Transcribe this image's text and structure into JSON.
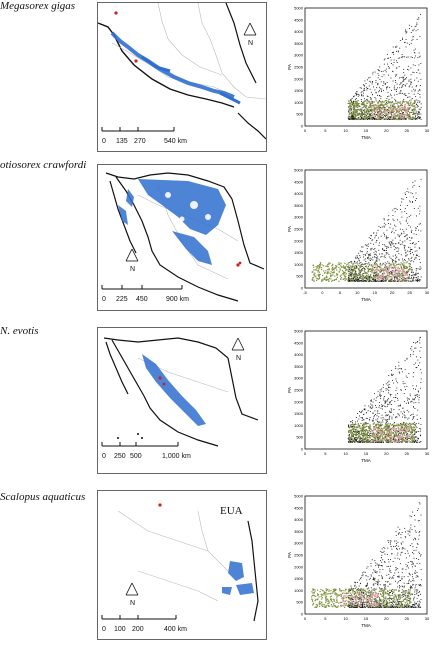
{
  "figure": {
    "rows": [
      {
        "species": "Megasorex gigas",
        "scale_labels": [
          "0",
          "135",
          "270",
          "540 km"
        ],
        "north": "N",
        "plot": {
          "xlabel": "TMA",
          "ylabel": "PA",
          "yticks": [
            "0",
            "500",
            "1000",
            "1500",
            "2000",
            "2500",
            "3000",
            "3500",
            "4000",
            "4500",
            "5000"
          ],
          "xticks": [
            "0",
            "5",
            "10",
            "15",
            "20",
            "25",
            "30"
          ]
        }
      },
      {
        "species": "otiosorex crawfordi",
        "scale_labels": [
          "0",
          "225",
          "450",
          "900 km"
        ],
        "north": "N",
        "plot": {
          "xlabel": "TMA",
          "ylabel": "PA",
          "yticks": [
            "0",
            "500",
            "1000",
            "1500",
            "2000",
            "2500",
            "3000",
            "3500",
            "4000",
            "4500",
            "5000"
          ],
          "xticks": [
            "-5",
            "0",
            "5",
            "10",
            "15",
            "20",
            "25",
            "30"
          ]
        }
      },
      {
        "species": "N. evotis",
        "scale_labels": [
          "0",
          "250",
          "500",
          "1,000 km"
        ],
        "north": "N",
        "plot": {
          "xlabel": "TMA",
          "ylabel": "PA",
          "yticks": [
            "0",
            "500",
            "1000",
            "1500",
            "2000",
            "2500",
            "3000",
            "3500",
            "4000",
            "4500",
            "5000"
          ],
          "xticks": [
            "0",
            "5",
            "10",
            "15",
            "20",
            "25",
            "30"
          ]
        }
      },
      {
        "species": "Scalopus aquaticus",
        "scale_labels": [
          "0",
          "100",
          "200",
          "400 km"
        ],
        "north": "N",
        "country_label": "EUA",
        "plot": {
          "xlabel": "TMA",
          "ylabel": "PA",
          "yticks": [
            "0",
            "500",
            "1000",
            "1500",
            "2000",
            "2500",
            "3000",
            "3500",
            "4000",
            "4500",
            "5000"
          ],
          "xticks": [
            "0",
            "5",
            "10",
            "15",
            "20",
            "25",
            "30"
          ]
        }
      }
    ],
    "colors": {
      "background_points": "#111111",
      "suitable_points": "#7d8f3a",
      "presence_points": "#e8a0b4",
      "distribution": "#2f6fcf",
      "records": "#cc2222",
      "coast": "#111111",
      "borders": "#bbbbbb"
    }
  }
}
